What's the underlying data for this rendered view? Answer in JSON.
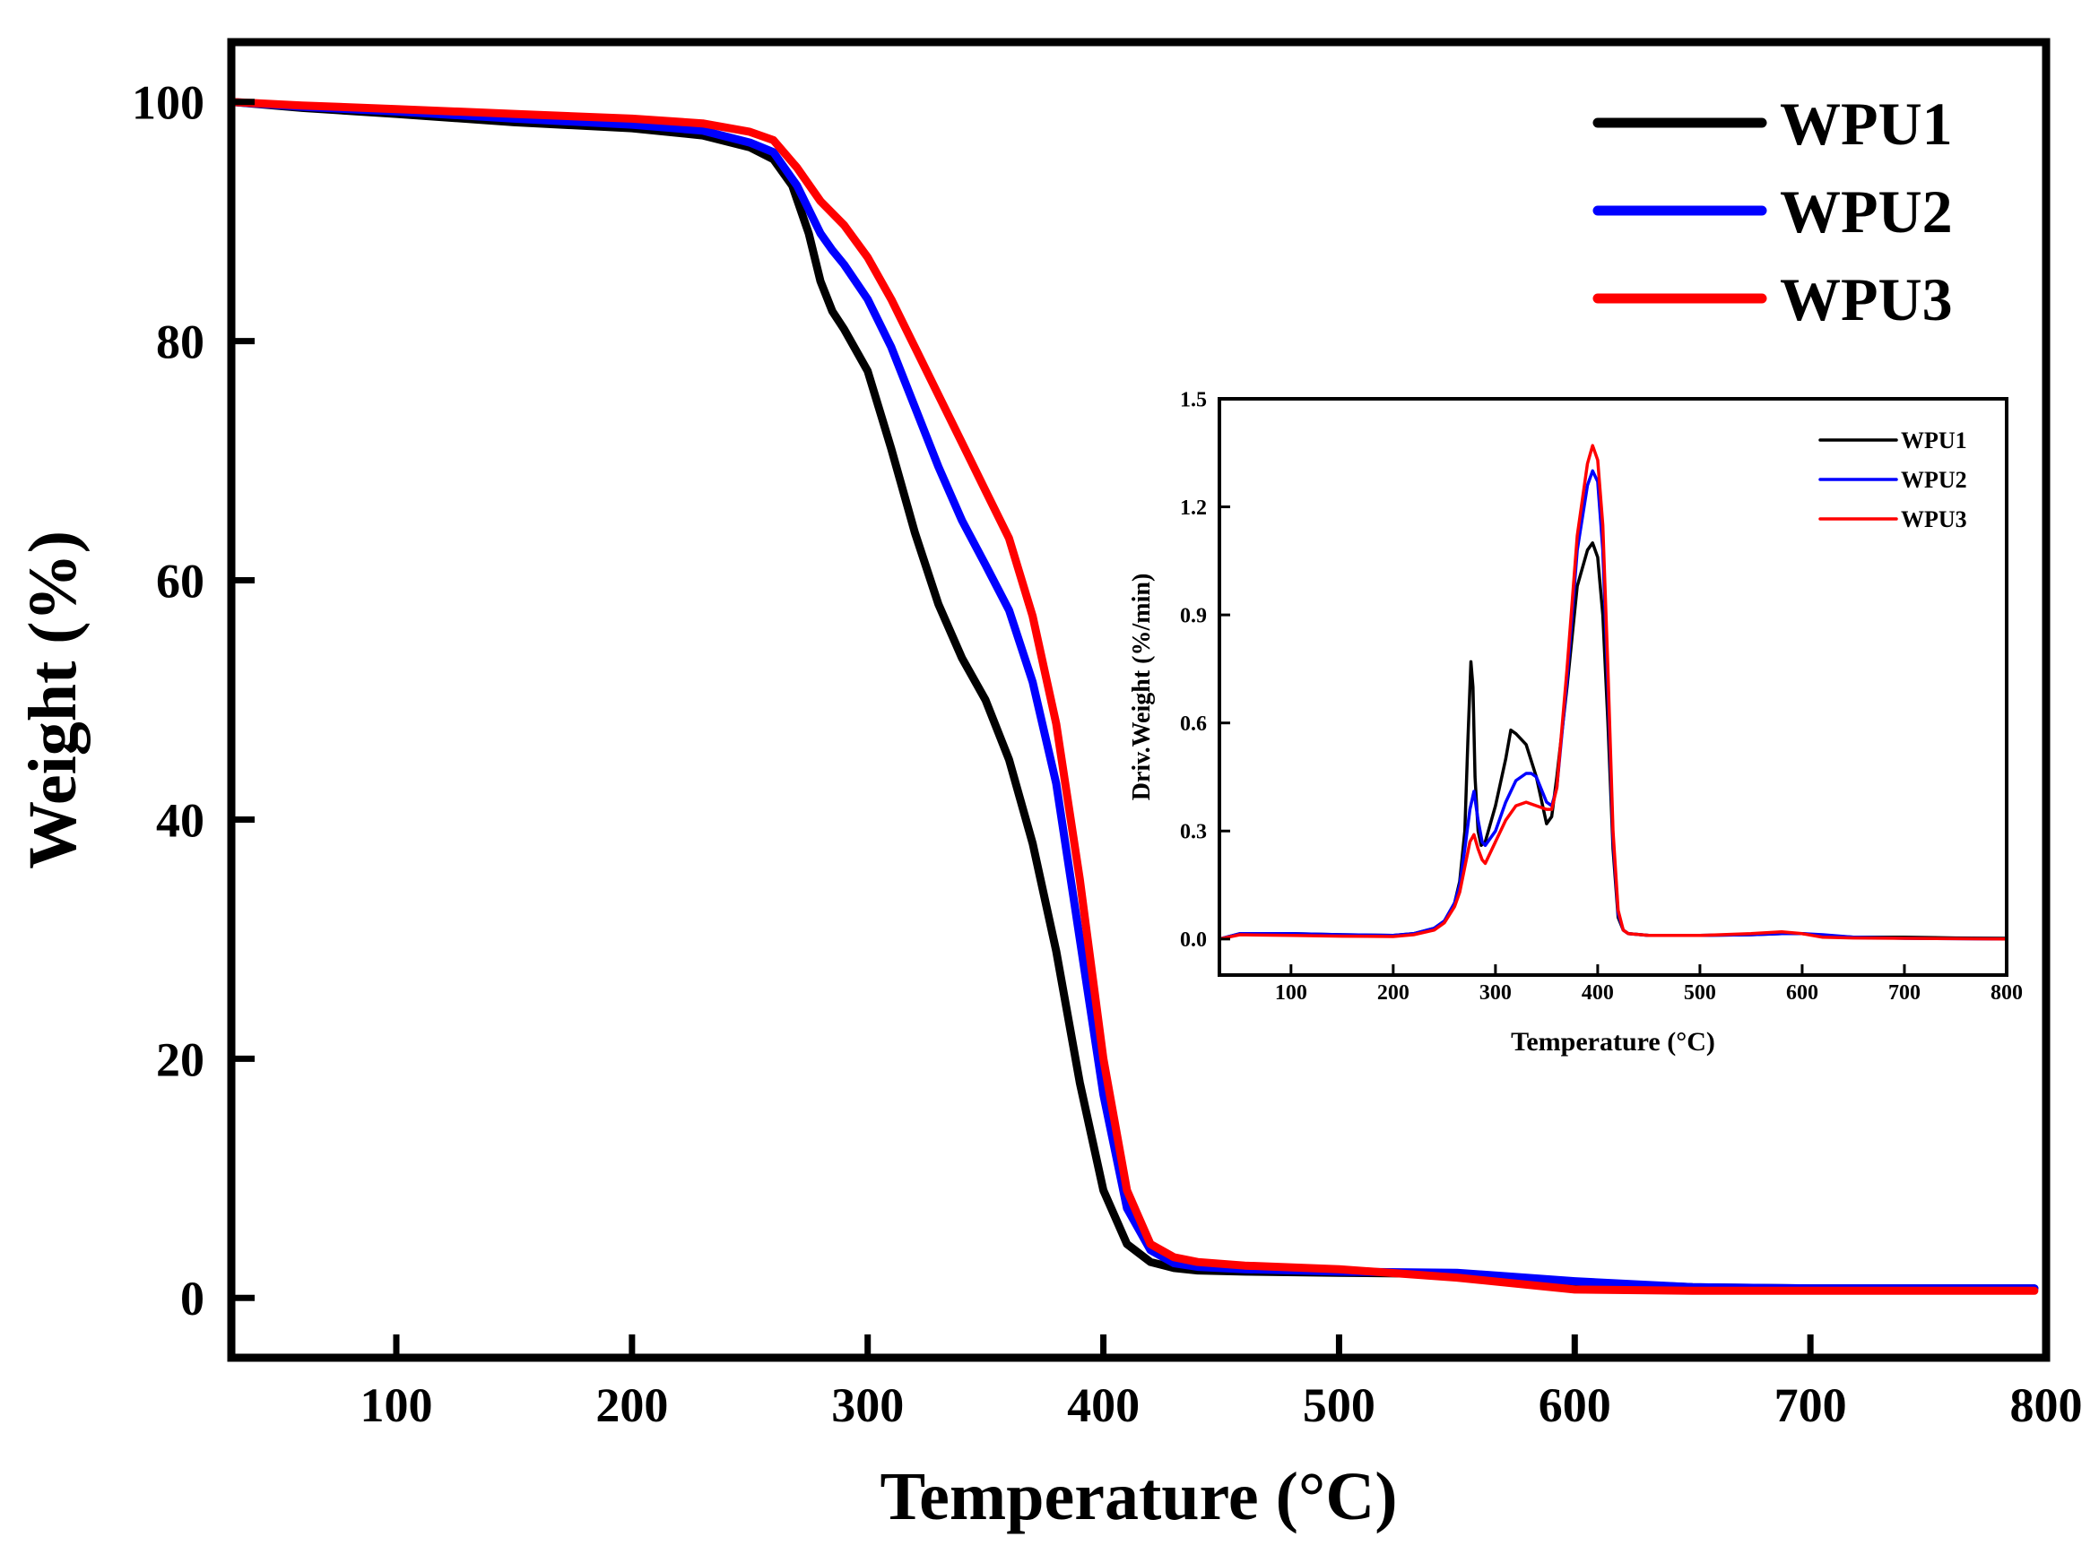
{
  "chart_data": [
    {
      "id": "main",
      "type": "line",
      "title": "",
      "xlabel": "Temperature (°C)",
      "ylabel": "Weight (%)",
      "xlim": [
        30,
        800
      ],
      "ylim": [
        -5,
        105
      ],
      "xticks": [
        100,
        200,
        300,
        400,
        500,
        600,
        700,
        800
      ],
      "yticks": [
        0,
        20,
        40,
        60,
        80,
        100
      ],
      "legend_position": "top-right",
      "series": [
        {
          "name": "WPU1",
          "color": "#000000",
          "x": [
            30,
            60,
            100,
            150,
            200,
            230,
            250,
            260,
            268,
            275,
            280,
            285,
            290,
            300,
            310,
            320,
            330,
            340,
            350,
            360,
            370,
            380,
            390,
            400,
            410,
            420,
            430,
            440,
            460,
            500,
            550,
            600,
            650,
            700,
            750,
            795
          ],
          "y": [
            100,
            99.5,
            99,
            98.3,
            97.8,
            97.2,
            96.2,
            95.2,
            93,
            89,
            85,
            82.5,
            81,
            77.5,
            71,
            64,
            58,
            53.5,
            50,
            45,
            38,
            29,
            18,
            9,
            4.5,
            3,
            2.5,
            2.3,
            2.2,
            2.1,
            2,
            1.3,
            0.9,
            0.8,
            0.8,
            0.8
          ]
        },
        {
          "name": "WPU2",
          "color": "#0000ff",
          "x": [
            30,
            60,
            100,
            150,
            200,
            230,
            250,
            260,
            270,
            280,
            285,
            290,
            300,
            310,
            320,
            330,
            340,
            350,
            360,
            370,
            380,
            390,
            400,
            410,
            420,
            430,
            440,
            460,
            500,
            550,
            600,
            650,
            700,
            750,
            795
          ],
          "y": [
            100,
            99.6,
            99.2,
            98.6,
            98.1,
            97.6,
            96.6,
            95.8,
            93,
            89,
            87.6,
            86.4,
            83.5,
            79.5,
            74.5,
            69.5,
            65,
            61.3,
            57.5,
            51.5,
            43,
            30,
            17,
            7.5,
            4,
            2.9,
            2.6,
            2.4,
            2.2,
            2.1,
            1.4,
            0.9,
            0.8,
            0.8,
            0.8
          ]
        },
        {
          "name": "WPU3",
          "color": "#ff0000",
          "x": [
            30,
            60,
            100,
            150,
            200,
            230,
            250,
            260,
            270,
            280,
            290,
            300,
            310,
            320,
            330,
            340,
            350,
            360,
            370,
            380,
            390,
            400,
            410,
            420,
            430,
            440,
            460,
            500,
            550,
            600,
            650,
            700,
            750,
            795
          ],
          "y": [
            100,
            99.7,
            99.4,
            99,
            98.6,
            98.2,
            97.5,
            96.8,
            94.5,
            91.7,
            89.7,
            87,
            83.5,
            79.5,
            75.5,
            71.5,
            67.5,
            63.5,
            57,
            48,
            35,
            20,
            9,
            4.5,
            3.4,
            3,
            2.7,
            2.4,
            1.7,
            0.7,
            0.6,
            0.6,
            0.6,
            0.6
          ]
        }
      ]
    },
    {
      "id": "inset",
      "type": "line",
      "title": "",
      "xlabel": "Temperature (°C)",
      "ylabel": "Driv.Weight (%/min)",
      "xlim": [
        30,
        800
      ],
      "ylim": [
        -0.1,
        1.5
      ],
      "xticks": [
        100,
        200,
        300,
        400,
        500,
        600,
        700,
        800
      ],
      "yticks": [
        0.0,
        0.3,
        0.6,
        0.9,
        1.2,
        1.5
      ],
      "ytick_labels": [
        "0.0",
        "0.3",
        "0.6",
        "0.9",
        "1.2",
        "1.5"
      ],
      "legend_position": "top-right",
      "series": [
        {
          "name": "WPU1",
          "color": "#000000",
          "x": [
            30,
            50,
            100,
            150,
            200,
            220,
            240,
            250,
            260,
            265,
            270,
            273,
            276,
            278,
            280,
            283,
            286,
            290,
            300,
            310,
            315,
            320,
            330,
            340,
            350,
            355,
            360,
            370,
            380,
            390,
            395,
            400,
            405,
            410,
            415,
            420,
            425,
            430,
            450,
            500,
            550,
            580,
            600,
            620,
            650,
            700,
            750,
            800
          ],
          "y": [
            0,
            0.015,
            0.015,
            0.012,
            0.01,
            0.015,
            0.03,
            0.05,
            0.1,
            0.16,
            0.3,
            0.55,
            0.77,
            0.7,
            0.45,
            0.3,
            0.26,
            0.27,
            0.37,
            0.5,
            0.58,
            0.57,
            0.54,
            0.45,
            0.32,
            0.34,
            0.45,
            0.7,
            0.98,
            1.08,
            1.1,
            1.06,
            0.9,
            0.6,
            0.25,
            0.06,
            0.025,
            0.015,
            0.01,
            0.01,
            0.012,
            0.015,
            0.015,
            0.01,
            0.005,
            0.005,
            0.003,
            0.002
          ]
        },
        {
          "name": "WPU2",
          "color": "#0000ff",
          "x": [
            30,
            50,
            100,
            150,
            200,
            220,
            240,
            250,
            260,
            265,
            270,
            275,
            279,
            283,
            287,
            290,
            300,
            310,
            320,
            330,
            335,
            340,
            350,
            355,
            360,
            370,
            380,
            390,
            395,
            400,
            405,
            410,
            415,
            420,
            425,
            430,
            450,
            500,
            550,
            580,
            600,
            620,
            650,
            700,
            750,
            800
          ],
          "y": [
            0,
            0.015,
            0.015,
            0.012,
            0.01,
            0.015,
            0.03,
            0.05,
            0.1,
            0.15,
            0.25,
            0.36,
            0.41,
            0.33,
            0.27,
            0.26,
            0.3,
            0.38,
            0.44,
            0.46,
            0.46,
            0.45,
            0.38,
            0.37,
            0.42,
            0.72,
            1.08,
            1.26,
            1.3,
            1.27,
            1.08,
            0.7,
            0.28,
            0.07,
            0.025,
            0.015,
            0.01,
            0.01,
            0.012,
            0.015,
            0.015,
            0.012,
            0.005,
            0.002,
            0.001,
            0.0
          ]
        },
        {
          "name": "WPU3",
          "color": "#ff0000",
          "x": [
            30,
            50,
            100,
            150,
            200,
            220,
            240,
            250,
            260,
            265,
            270,
            275,
            279,
            283,
            287,
            290,
            300,
            310,
            320,
            330,
            340,
            350,
            355,
            360,
            370,
            380,
            390,
            395,
            400,
            405,
            410,
            415,
            420,
            425,
            430,
            450,
            500,
            550,
            580,
            600,
            620,
            650,
            700,
            750,
            800
          ],
          "y": [
            0,
            0.012,
            0.01,
            0.008,
            0.007,
            0.012,
            0.025,
            0.045,
            0.09,
            0.13,
            0.2,
            0.27,
            0.29,
            0.25,
            0.22,
            0.21,
            0.27,
            0.33,
            0.37,
            0.38,
            0.37,
            0.36,
            0.36,
            0.42,
            0.75,
            1.12,
            1.32,
            1.37,
            1.33,
            1.15,
            0.75,
            0.3,
            0.08,
            0.025,
            0.015,
            0.01,
            0.01,
            0.015,
            0.02,
            0.015,
            0.005,
            0.003,
            0.002,
            0.001,
            0.0
          ]
        }
      ]
    }
  ]
}
